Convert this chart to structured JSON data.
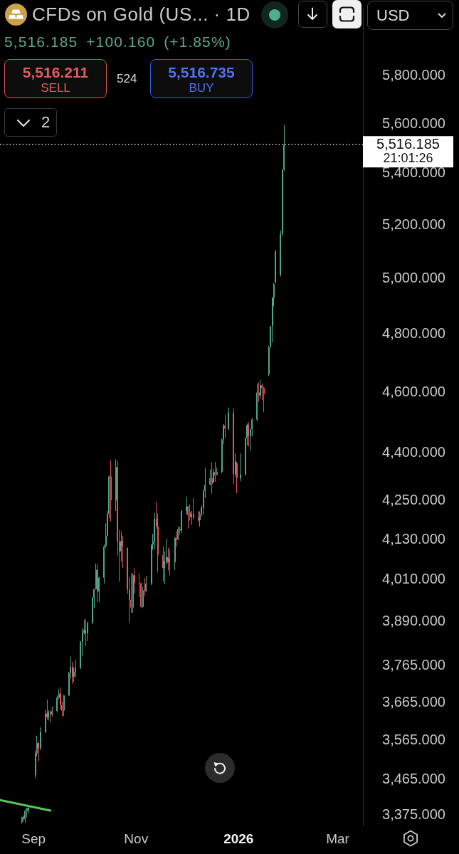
{
  "chart_data": {
    "type": "candlestick",
    "title": "CFDs on Gold (US... · 1D",
    "subtitle": "5,516.185 +100.160 (+1.85%)",
    "annotations": [
      "5,516.211",
      "SELL",
      "524",
      "5,516.735",
      "BUY",
      "2",
      "USD",
      "21:01:26"
    ],
    "log": true,
    "xlim": [
      "2025-08-12",
      "2026-03-16"
    ],
    "xticks": [
      {
        "value": "2025-09-01",
        "label": "Sep"
      },
      {
        "value": "2025-11-01",
        "label": "Nov"
      },
      {
        "value": "2026-01-01",
        "label": "2026"
      },
      {
        "value": "2026-03-01",
        "label": "Mar"
      }
    ],
    "ylim": [
      3350,
      6094
    ],
    "yticks": [
      {
        "value": 5800,
        "label": "5,800.000"
      },
      {
        "value": 5600,
        "label": "5,600.000"
      },
      {
        "value": 5400,
        "label": "5,400.000"
      },
      {
        "value": 5200,
        "label": "5,200.000"
      },
      {
        "value": 5000,
        "label": "5,000.000"
      },
      {
        "value": 4800,
        "label": "4,800.000"
      },
      {
        "value": 4600,
        "label": "4,600.000"
      },
      {
        "value": 4400,
        "label": "4,400.000"
      },
      {
        "value": 4250,
        "label": "4,250.000"
      },
      {
        "value": 4130,
        "label": "4,130.000"
      },
      {
        "value": 4010,
        "label": "4,010.000"
      },
      {
        "value": 3890,
        "label": "3,890.000"
      },
      {
        "value": 3765,
        "label": "3,765.000"
      },
      {
        "value": 3665,
        "label": "3,665.000"
      },
      {
        "value": 3565,
        "label": "3,565.000"
      },
      {
        "value": 3465,
        "label": "3,465.000"
      },
      {
        "value": 3375,
        "label": "3,375.000"
      }
    ],
    "ref_lines": [
      {
        "axis": "y",
        "value": 5516.185,
        "label": "5,516.185",
        "color": "#ffffff",
        "line_style": "dotted"
      }
    ],
    "series": [
      {
        "type": "line",
        "x": [
          "2025-08-12",
          "2025-09-11"
        ],
        "values": [
          3413,
          3387
        ],
        "color": "#5cc35a"
      },
      {
        "type": "candlestick",
        "x": [
          "2025-08-25",
          "2025-08-26",
          "2025-08-27",
          "2025-08-28",
          "2025-08-29",
          "2025-09-02",
          "2025-09-03",
          "2025-09-04",
          "2025-09-05",
          "2025-09-08",
          "2025-09-09",
          "2025-09-10",
          "2025-09-11",
          "2025-09-12",
          "2025-09-15",
          "2025-09-16",
          "2025-09-17",
          "2025-09-18",
          "2025-09-19",
          "2025-09-22",
          "2025-09-23",
          "2025-09-24",
          "2025-09-25",
          "2025-09-26",
          "2025-09-29",
          "2025-09-30",
          "2025-10-01",
          "2025-10-02",
          "2025-10-03",
          "2025-10-06",
          "2025-10-07",
          "2025-10-08",
          "2025-10-09",
          "2025-10-10",
          "2025-10-13",
          "2025-10-14",
          "2025-10-15",
          "2025-10-16",
          "2025-10-17",
          "2025-10-20",
          "2025-10-21",
          "2025-10-22",
          "2025-10-23",
          "2025-10-24",
          "2025-10-27",
          "2025-10-28",
          "2025-10-29",
          "2025-10-30",
          "2025-10-31",
          "2025-11-03",
          "2025-11-04",
          "2025-11-05",
          "2025-11-06",
          "2025-11-07",
          "2025-11-10",
          "2025-11-11",
          "2025-11-12",
          "2025-11-13",
          "2025-11-14",
          "2025-11-17",
          "2025-11-18",
          "2025-11-19",
          "2025-11-20",
          "2025-11-21",
          "2025-11-24",
          "2025-11-25",
          "2025-11-26",
          "2025-11-27",
          "2025-11-28",
          "2025-12-01",
          "2025-12-02",
          "2025-12-03",
          "2025-12-04",
          "2025-12-05",
          "2025-12-08",
          "2025-12-09",
          "2025-12-10",
          "2025-12-11",
          "2025-12-12",
          "2025-12-15",
          "2025-12-16",
          "2025-12-17",
          "2025-12-18",
          "2025-12-19",
          "2025-12-22",
          "2025-12-23",
          "2025-12-24",
          "2025-12-26",
          "2025-12-29",
          "2025-12-30",
          "2025-12-31",
          "2026-01-02",
          "2026-01-05",
          "2026-01-06",
          "2026-01-07",
          "2026-01-08",
          "2026-01-09",
          "2026-01-12",
          "2026-01-13",
          "2026-01-14",
          "2026-01-15",
          "2026-01-16",
          "2026-01-19",
          "2026-01-20",
          "2026-01-21",
          "2026-01-22",
          "2026-01-23",
          "2026-01-26",
          "2026-01-27",
          "2026-01-28"
        ],
        "ohlc": [
          [
            3358,
            3372,
            3355,
            3370
          ],
          [
            3372,
            3376,
            3360,
            3366
          ],
          [
            3366,
            3390,
            3358,
            3386
          ],
          [
            3386,
            3394,
            3370,
            3392
          ],
          [
            3388,
            3396,
            3380,
            3394
          ],
          [
            3476,
            3539,
            3468,
            3532
          ],
          [
            3532,
            3578,
            3525,
            3559
          ],
          [
            3559,
            3563,
            3511,
            3545
          ],
          [
            3545,
            3600,
            3540,
            3587
          ],
          [
            3587,
            3646,
            3585,
            3636
          ],
          [
            3636,
            3674,
            3620,
            3627
          ],
          [
            3627,
            3645,
            3618,
            3640
          ],
          [
            3640,
            3645,
            3612,
            3634
          ],
          [
            3634,
            3655,
            3628,
            3643
          ],
          [
            3643,
            3685,
            3640,
            3679
          ],
          [
            3679,
            3703,
            3674,
            3690
          ],
          [
            3690,
            3707,
            3645,
            3659
          ],
          [
            3659,
            3668,
            3628,
            3644
          ],
          [
            3644,
            3686,
            3630,
            3685
          ],
          [
            3685,
            3749,
            3684,
            3746
          ],
          [
            3746,
            3791,
            3730,
            3763
          ],
          [
            3763,
            3777,
            3717,
            3736
          ],
          [
            3736,
            3761,
            3722,
            3749
          ],
          [
            3749,
            3782,
            3733,
            3760
          ],
          [
            3760,
            3834,
            3757,
            3833
          ],
          [
            3833,
            3872,
            3793,
            3858
          ],
          [
            3858,
            3895,
            3853,
            3866
          ],
          [
            3866,
            3897,
            3820,
            3856
          ],
          [
            3856,
            3889,
            3834,
            3886
          ],
          [
            3886,
            3960,
            3883,
            3958
          ],
          [
            3958,
            3985,
            3930,
            3983
          ],
          [
            3983,
            4059,
            3982,
            4040
          ],
          [
            4040,
            4058,
            3945,
            3976
          ],
          [
            3976,
            4020,
            3945,
            4017
          ],
          [
            4017,
            4116,
            4000,
            4110
          ],
          [
            4110,
            4180,
            4105,
            4142
          ],
          [
            4142,
            4218,
            4140,
            4209
          ],
          [
            4209,
            4330,
            4195,
            4326
          ],
          [
            4326,
            4377,
            4185,
            4251
          ],
          [
            4251,
            4381,
            4218,
            4356
          ],
          [
            4356,
            4375,
            4082,
            4125
          ],
          [
            4125,
            4160,
            4004,
            4095
          ],
          [
            4095,
            4155,
            4065,
            4126
          ],
          [
            4126,
            4142,
            4045,
            4111
          ],
          [
            4105,
            4106,
            3970,
            3982
          ],
          [
            3982,
            4020,
            3886,
            3952
          ],
          [
            3952,
            4030,
            3915,
            3930
          ],
          [
            3930,
            4030,
            3915,
            4024
          ],
          [
            4024,
            4045,
            3970,
            4002
          ],
          [
            4002,
            4030,
            3960,
            4000
          ],
          [
            4000,
            4002,
            3930,
            3932
          ],
          [
            3932,
            3990,
            3930,
            3980
          ],
          [
            3980,
            4016,
            3962,
            3977
          ],
          [
            3977,
            4022,
            3975,
            4000
          ],
          [
            4000,
            4116,
            3995,
            4115
          ],
          [
            4115,
            4148,
            4100,
            4127
          ],
          [
            4127,
            4212,
            4101,
            4194
          ],
          [
            4194,
            4245,
            4164,
            4171
          ],
          [
            4171,
            4210,
            4032,
            4084
          ],
          [
            4084,
            4110,
            4006,
            4045
          ],
          [
            4045,
            4095,
            3998,
            4067
          ],
          [
            4067,
            4132,
            4055,
            4078
          ],
          [
            4078,
            4106,
            4038,
            4060
          ],
          [
            4075,
            4100,
            4023,
            4062
          ],
          [
            4062,
            4138,
            4040,
            4135
          ],
          [
            4135,
            4156,
            4108,
            4131
          ],
          [
            4131,
            4170,
            4128,
            4163
          ],
          [
            4163,
            4170,
            4146,
            4158
          ],
          [
            4158,
            4220,
            4150,
            4218
          ],
          [
            4218,
            4262,
            4206,
            4232
          ],
          [
            4232,
            4234,
            4164,
            4205
          ],
          [
            4215,
            4238,
            4188,
            4199
          ],
          [
            4199,
            4218,
            4175,
            4208
          ],
          [
            4208,
            4258,
            4192,
            4197
          ],
          [
            4197,
            4217,
            4185,
            4190
          ],
          [
            4190,
            4217,
            4170,
            4208
          ],
          [
            4208,
            4235,
            4202,
            4228
          ],
          [
            4228,
            4285,
            4206,
            4280
          ],
          [
            4280,
            4353,
            4258,
            4300
          ],
          [
            4300,
            4348,
            4297,
            4320
          ],
          [
            4320,
            4372,
            4272,
            4302
          ],
          [
            4308,
            4350,
            4306,
            4340
          ],
          [
            4340,
            4372,
            4309,
            4330
          ],
          [
            4331,
            4354,
            4330,
            4340
          ],
          [
            4340,
            4447,
            4336,
            4445
          ],
          [
            4445,
            4495,
            4430,
            4490
          ],
          [
            4490,
            4525,
            4448,
            4480
          ],
          [
            4480,
            4550,
            4475,
            4532
          ],
          [
            4532,
            4548,
            4302,
            4333
          ],
          [
            4333,
            4400,
            4325,
            4375
          ],
          [
            4368,
            4372,
            4273,
            4320
          ],
          [
            4320,
            4400,
            4310,
            4332
          ],
          [
            4332,
            4452,
            4330,
            4448
          ],
          [
            4448,
            4497,
            4425,
            4492
          ],
          [
            4492,
            4500,
            4422,
            4455
          ],
          [
            4455,
            4480,
            4408,
            4478
          ],
          [
            4478,
            4515,
            4455,
            4510
          ],
          [
            4510,
            4630,
            4505,
            4600
          ],
          [
            4600,
            4634,
            4568,
            4590
          ],
          [
            4590,
            4643,
            4580,
            4625
          ],
          [
            4625,
            4631,
            4575,
            4615
          ],
          [
            4615,
            4620,
            4535,
            4595
          ],
          [
            4662,
            4760,
            4655,
            4755
          ],
          [
            4757,
            4830,
            4755,
            4828
          ],
          [
            4830,
            4934,
            4772,
            4930
          ],
          [
            4930,
            4985,
            4900,
            4980
          ],
          [
            4985,
            5107,
            4985,
            5100
          ],
          [
            5015,
            5180,
            5008,
            5165
          ],
          [
            5168,
            5416,
            5160,
            5416
          ],
          [
            5416,
            5597,
            5410,
            5516.185
          ]
        ],
        "colors": [
          "#4ea68c",
          "#e2535b",
          "#4ea68c",
          "#4ea68c",
          "#4ea68c",
          "#4ea68c",
          "#4ea68c",
          "#e2535b",
          "#4ea68c",
          "#4ea68c",
          "#e2535b",
          "#4ea68c",
          "#e2535b",
          "#4ea68c",
          "#4ea68c",
          "#4ea68c",
          "#e2535b",
          "#e2535b",
          "#4ea68c",
          "#4ea68c",
          "#4ea68c",
          "#e2535b",
          "#4ea68c",
          "#4ea68c",
          "#4ea68c",
          "#4ea68c",
          "#4ea68c",
          "#e2535b",
          "#4ea68c",
          "#4ea68c",
          "#4ea68c",
          "#4ea68c",
          "#e2535b",
          "#4ea68c",
          "#4ea68c",
          "#4ea68c",
          "#4ea68c",
          "#4ea68c",
          "#e2535b",
          "#4ea68c",
          "#e2535b",
          "#e2535b",
          "#4ea68c",
          "#e2535b",
          "#e2535b",
          "#e2535b",
          "#e2535b",
          "#4ea68c",
          "#e2535b",
          "#e2535b",
          "#e2535b",
          "#4ea68c",
          "#e2535b",
          "#4ea68c",
          "#4ea68c",
          "#4ea68c",
          "#4ea68c",
          "#e2535b",
          "#e2535b",
          "#e2535b",
          "#4ea68c",
          "#4ea68c",
          "#e2535b",
          "#e2535b",
          "#4ea68c",
          "#e2535b",
          "#4ea68c",
          "#e2535b",
          "#4ea68c",
          "#4ea68c",
          "#e2535b",
          "#e2535b",
          "#4ea68c",
          "#e2535b",
          "#e2535b",
          "#4ea68c",
          "#4ea68c",
          "#4ea68c",
          "#4ea68c",
          "#4ea68c",
          "#e2535b",
          "#4ea68c",
          "#e2535b",
          "#4ea68c",
          "#4ea68c",
          "#4ea68c",
          "#e2535b",
          "#4ea68c",
          "#e2535b",
          "#4ea68c",
          "#e2535b",
          "#4ea68c",
          "#4ea68c",
          "#4ea68c",
          "#e2535b",
          "#4ea68c",
          "#4ea68c",
          "#4ea68c",
          "#e2535b",
          "#4ea68c",
          "#e2535b",
          "#e2535b",
          "#4ea68c",
          "#4ea68c",
          "#4ea68c",
          "#4ea68c",
          "#4ea68c",
          "#4ea68c",
          "#4ea68c",
          "#4ea68c"
        ]
      }
    ]
  }
}
